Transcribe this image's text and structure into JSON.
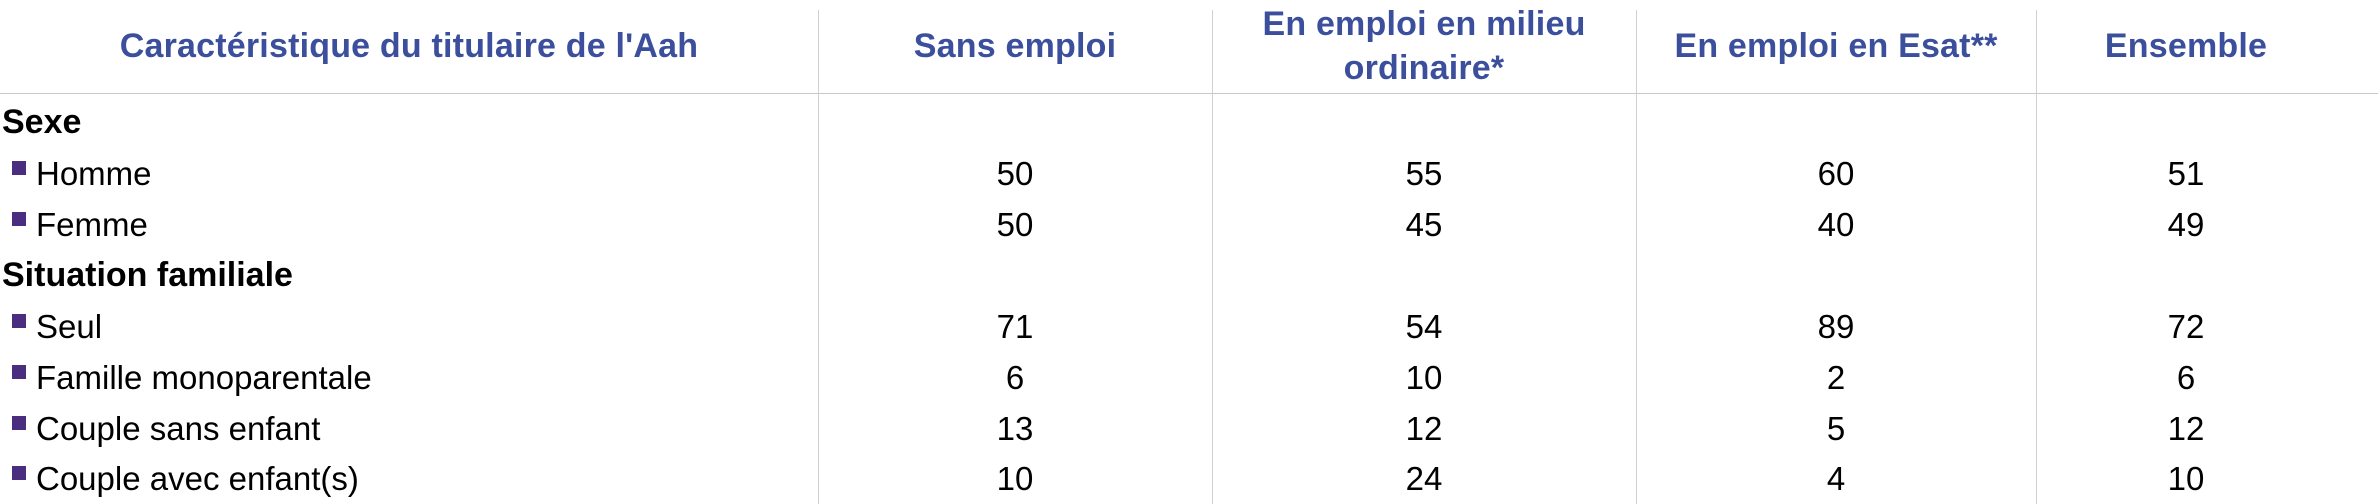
{
  "colors": {
    "header_text": "#3b4f9c",
    "bullet": "#4b2d7f",
    "divider": "#d0d0d0"
  },
  "header": {
    "col0": "Caractéristique du titulaire de l'Aah",
    "col1": "Sans emploi",
    "col2": "En emploi en milieu ordinaire*",
    "col3": "En emploi en Esat**",
    "col4": "Ensemble"
  },
  "sections": [
    {
      "label": "Sexe",
      "rows": [
        {
          "label": "Homme",
          "values": [
            "50",
            "55",
            "60",
            "51"
          ]
        },
        {
          "label": "Femme",
          "values": [
            "50",
            "45",
            "40",
            "49"
          ]
        }
      ]
    },
    {
      "label": "Situation familiale",
      "rows": [
        {
          "label": "Seul",
          "values": [
            "71",
            "54",
            "89",
            "72"
          ]
        },
        {
          "label": "Famille monoparentale",
          "values": [
            "6",
            "10",
            "2",
            "6"
          ]
        },
        {
          "label": "Couple sans enfant",
          "values": [
            "13",
            "12",
            "5",
            "12"
          ]
        },
        {
          "label": "Couple avec enfant(s)",
          "values": [
            "10",
            "24",
            "4",
            "10"
          ]
        }
      ]
    }
  ]
}
